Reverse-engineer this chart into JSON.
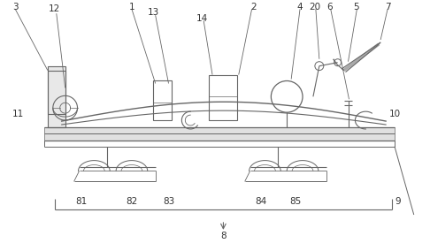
{
  "bg_color": "#ffffff",
  "lc": "#666666",
  "label_color": "#333333",
  "figsize": [
    4.86,
    2.84
  ],
  "dpi": 100,
  "label_fs": 7.5
}
